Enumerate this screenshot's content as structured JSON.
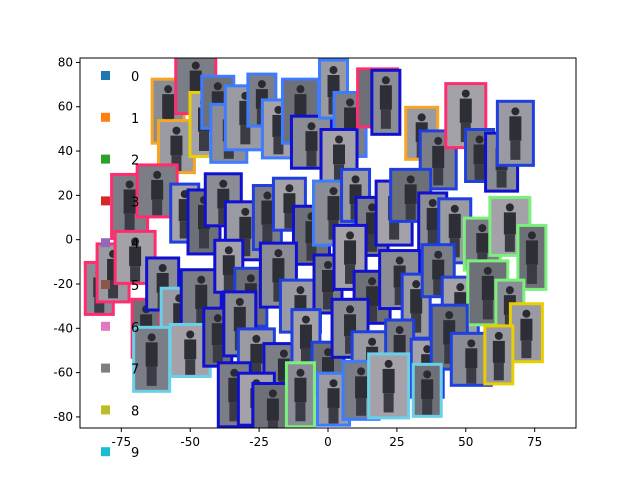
{
  "chart_data": {
    "type": "scatter",
    "title": "",
    "xlabel": "",
    "ylabel": "",
    "xlim": [
      -90,
      90
    ],
    "ylim": [
      -85,
      82
    ],
    "x_ticks": [
      "-75",
      "-50",
      "-25",
      "0",
      "25",
      "50",
      "75"
    ],
    "x_tick_values": [
      -75,
      -50,
      -25,
      0,
      25,
      50,
      75
    ],
    "y_ticks": [
      "80",
      "60",
      "40",
      "20",
      "0",
      "-20",
      "-40",
      "-60",
      "-80"
    ],
    "y_tick_values": [
      80,
      60,
      40,
      20,
      0,
      -20,
      -40,
      -60,
      -80
    ],
    "grid": false,
    "legend_position": "left",
    "legend": [
      {
        "label": "0",
        "color": "#1f77b4"
      },
      {
        "label": "1",
        "color": "#ff7f0e"
      },
      {
        "label": "2",
        "color": "#2ca02c"
      },
      {
        "label": "3",
        "color": "#d62728"
      },
      {
        "label": "4",
        "color": "#9467bd"
      },
      {
        "label": "5",
        "color": "#8c564b"
      },
      {
        "label": "6",
        "color": "#e377c2"
      },
      {
        "label": "7",
        "color": "#7f7f7f"
      },
      {
        "label": "8",
        "color": "#bcbd22"
      },
      {
        "label": "9",
        "color": "#17becf"
      }
    ],
    "thumbnail_frame_colors": [
      "#ff2d6e",
      "#f6a623",
      "#1f3fe0",
      "#3d7bff",
      "#7cf07c",
      "#6ad0e8",
      "#e8d000",
      "#1010d0"
    ],
    "points": [
      {
        "x": -83,
        "y": -22,
        "frame": "#ff2d6e"
      },
      {
        "x": -78,
        "y": -15,
        "frame": "#ff2d6e"
      },
      {
        "x": -72,
        "y": 15,
        "frame": "#ff2d6e"
      },
      {
        "x": -70,
        "y": -8,
        "frame": "#ff2d6e"
      },
      {
        "x": -66,
        "y": -40,
        "frame": "#ff2d6e"
      },
      {
        "x": -58,
        "y": 58,
        "frame": "#f6a623"
      },
      {
        "x": -55,
        "y": 42,
        "frame": "#f6a623"
      },
      {
        "x": -48,
        "y": 70,
        "frame": "#ff2d6e"
      },
      {
        "x": -45,
        "y": 52,
        "frame": "#e8d000"
      },
      {
        "x": -40,
        "y": 62,
        "frame": "#3d7bff"
      },
      {
        "x": -36,
        "y": 48,
        "frame": "#3d7bff"
      },
      {
        "x": -30,
        "y": 55,
        "frame": "#3d7bff"
      },
      {
        "x": -24,
        "y": 63,
        "frame": "#3d7bff"
      },
      {
        "x": -18,
        "y": 50,
        "frame": "#3d7bff"
      },
      {
        "x": -10,
        "y": 58,
        "frame": "#3d7bff"
      },
      {
        "x": -6,
        "y": 44,
        "frame": "#1010d0"
      },
      {
        "x": 2,
        "y": 68,
        "frame": "#3d7bff"
      },
      {
        "x": 8,
        "y": 52,
        "frame": "#3d7bff"
      },
      {
        "x": 4,
        "y": 38,
        "frame": "#1010d0"
      },
      {
        "x": 18,
        "y": 64,
        "frame": "#ff2d6e"
      },
      {
        "x": 21,
        "y": 62,
        "frame": "#1010d0"
      },
      {
        "x": 34,
        "y": 48,
        "frame": "#f6a623"
      },
      {
        "x": 40,
        "y": 36,
        "frame": "#1f3fe0"
      },
      {
        "x": 50,
        "y": 56,
        "frame": "#ff2d6e"
      },
      {
        "x": 55,
        "y": 38,
        "frame": "#1f3fe0"
      },
      {
        "x": 63,
        "y": 35,
        "frame": "#1010d0"
      },
      {
        "x": 68,
        "y": 48,
        "frame": "#1f3fe0"
      },
      {
        "x": -62,
        "y": 22,
        "frame": "#ff2d6e"
      },
      {
        "x": -52,
        "y": 12,
        "frame": "#1f3fe0"
      },
      {
        "x": -45,
        "y": 8,
        "frame": "#1010d0"
      },
      {
        "x": -38,
        "y": 18,
        "frame": "#1010d0"
      },
      {
        "x": -30,
        "y": 4,
        "frame": "#1010d0"
      },
      {
        "x": -22,
        "y": 10,
        "frame": "#1f3fe0"
      },
      {
        "x": -14,
        "y": 16,
        "frame": "#1f3fe0"
      },
      {
        "x": -6,
        "y": 2,
        "frame": "#1010d0"
      },
      {
        "x": 2,
        "y": 12,
        "frame": "#3d7bff"
      },
      {
        "x": 10,
        "y": 20,
        "frame": "#1f3fe0"
      },
      {
        "x": 16,
        "y": 6,
        "frame": "#1010d0"
      },
      {
        "x": 24,
        "y": 12,
        "frame": "#1010d0"
      },
      {
        "x": 30,
        "y": 20,
        "frame": "#1f3fe0"
      },
      {
        "x": 38,
        "y": 8,
        "frame": "#1010d0"
      },
      {
        "x": 46,
        "y": 4,
        "frame": "#1f3fe0"
      },
      {
        "x": 56,
        "y": -2,
        "frame": "#7cf07c"
      },
      {
        "x": 66,
        "y": 6,
        "frame": "#7cf07c"
      },
      {
        "x": 74,
        "y": -8,
        "frame": "#7cf07c"
      },
      {
        "x": -60,
        "y": -20,
        "frame": "#1010d0"
      },
      {
        "x": -54,
        "y": -35,
        "frame": "#6ad0e8"
      },
      {
        "x": -46,
        "y": -28,
        "frame": "#1010d0"
      },
      {
        "x": -36,
        "y": -12,
        "frame": "#1010d0"
      },
      {
        "x": -28,
        "y": -26,
        "frame": "#1f3fe0"
      },
      {
        "x": -18,
        "y": -16,
        "frame": "#1010d0"
      },
      {
        "x": -10,
        "y": -30,
        "frame": "#1f3fe0"
      },
      {
        "x": 0,
        "y": -20,
        "frame": "#1010d0"
      },
      {
        "x": 8,
        "y": -8,
        "frame": "#1010d0"
      },
      {
        "x": 16,
        "y": -26,
        "frame": "#1010d0"
      },
      {
        "x": 26,
        "y": -18,
        "frame": "#1010d0"
      },
      {
        "x": 32,
        "y": -30,
        "frame": "#1f3fe0"
      },
      {
        "x": 40,
        "y": -14,
        "frame": "#1f3fe0"
      },
      {
        "x": 48,
        "y": -30,
        "frame": "#1f3fe0"
      },
      {
        "x": 58,
        "y": -24,
        "frame": "#7cf07c"
      },
      {
        "x": 66,
        "y": -30,
        "frame": "#7cf07c"
      },
      {
        "x": 72,
        "y": -42,
        "frame": "#e8d000"
      },
      {
        "x": -64,
        "y": -54,
        "frame": "#6ad0e8"
      },
      {
        "x": -50,
        "y": -50,
        "frame": "#6ad0e8"
      },
      {
        "x": -40,
        "y": -44,
        "frame": "#1010d0"
      },
      {
        "x": -32,
        "y": -38,
        "frame": "#1010d0"
      },
      {
        "x": -26,
        "y": -52,
        "frame": "#1f3fe0"
      },
      {
        "x": -16,
        "y": -60,
        "frame": "#1010d0"
      },
      {
        "x": -8,
        "y": -46,
        "frame": "#1f3fe0"
      },
      {
        "x": 0,
        "y": -58,
        "frame": "#1f3fe0"
      },
      {
        "x": 8,
        "y": -40,
        "frame": "#1010d0"
      },
      {
        "x": 16,
        "y": -56,
        "frame": "#1f3fe0"
      },
      {
        "x": 26,
        "y": -48,
        "frame": "#1f3fe0"
      },
      {
        "x": 36,
        "y": -58,
        "frame": "#1f3fe0"
      },
      {
        "x": 44,
        "y": -44,
        "frame": "#1f3fe0"
      },
      {
        "x": 52,
        "y": -54,
        "frame": "#1f3fe0"
      },
      {
        "x": 62,
        "y": -52,
        "frame": "#e8d000"
      },
      {
        "x": -34,
        "y": -70,
        "frame": "#1010d0"
      },
      {
        "x": -26,
        "y": -72,
        "frame": "#1010d0"
      },
      {
        "x": -20,
        "y": -78,
        "frame": "#1010d0"
      },
      {
        "x": -10,
        "y": -70,
        "frame": "#7cf07c"
      },
      {
        "x": 2,
        "y": -72,
        "frame": "#3d7bff"
      },
      {
        "x": 12,
        "y": -68,
        "frame": "#3d7bff"
      },
      {
        "x": 22,
        "y": -66,
        "frame": "#6ad0e8"
      },
      {
        "x": 36,
        "y": -68,
        "frame": "#6ad0e8"
      }
    ]
  }
}
